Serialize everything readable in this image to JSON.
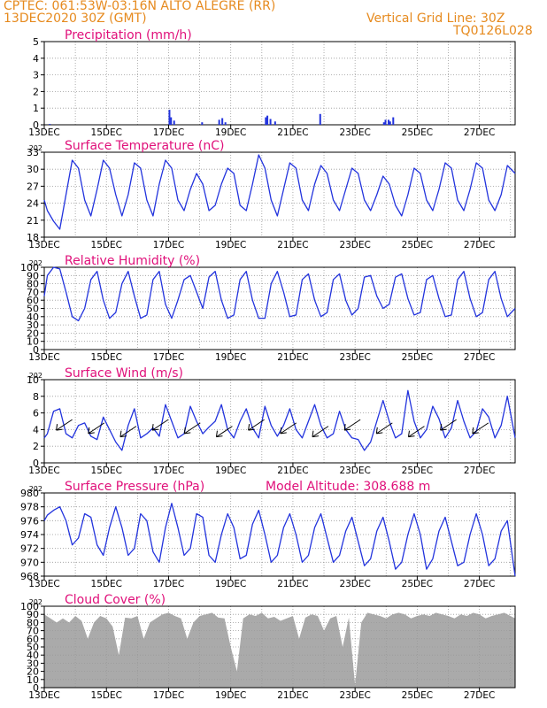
{
  "header": {
    "line1_left": "CPTEC:   061:53W-03:16N   ALTO ALEGRE (RR)",
    "line2_left": "13DEC2020 30Z (GMT)",
    "line1_right": "Vertical Grid Line: 30Z",
    "line2_right": "TQ0126L028"
  },
  "colors": {
    "series": "#2233dd",
    "title": "#e0107a",
    "header": "#e68a1e",
    "cloud": "#aaaaaa",
    "grid": "#999999"
  },
  "x_ticks": [
    "13DEC",
    "15DEC",
    "17DEC",
    "19DEC",
    "21DEC",
    "23DEC",
    "25DEC",
    "27DEC"
  ],
  "stub_label": "202",
  "chart_data": [
    {
      "id": "precip",
      "type": "bar",
      "title": "Precipitation (mm/h)",
      "ylim": [
        0,
        5
      ],
      "yticks": [
        "0",
        "1",
        "2",
        "3",
        "4",
        "5"
      ],
      "x_unit": "days since 13DEC 00Z",
      "x_range": [
        0,
        15.15
      ],
      "bars": [
        [
          0.15,
          0.05
        ],
        [
          4.0,
          0.9
        ],
        [
          4.05,
          0.45
        ],
        [
          4.15,
          0.25
        ],
        [
          5.05,
          0.15
        ],
        [
          5.6,
          0.3
        ],
        [
          5.7,
          0.4
        ],
        [
          5.8,
          0.15
        ],
        [
          7.1,
          0.45
        ],
        [
          7.15,
          0.55
        ],
        [
          7.25,
          0.35
        ],
        [
          7.4,
          0.2
        ],
        [
          8.85,
          0.65
        ],
        [
          10.9,
          0.15
        ],
        [
          10.95,
          0.3
        ],
        [
          11.05,
          0.3
        ],
        [
          11.1,
          0.2
        ],
        [
          11.2,
          0.45
        ]
      ]
    },
    {
      "id": "temp",
      "type": "line",
      "title": "Surface Temperature (nC)",
      "ylim": [
        17,
        33
      ],
      "yticks": [
        "18",
        "21",
        "24",
        "27",
        "30",
        "33"
      ],
      "x_range": [
        0,
        15.15
      ],
      "x": [
        0,
        0.1,
        0.3,
        0.5,
        0.7,
        0.9,
        1.1,
        1.3,
        1.5,
        1.7,
        1.9,
        2.1,
        2.3,
        2.5,
        2.7,
        2.9,
        3.1,
        3.3,
        3.5,
        3.7,
        3.9,
        4.1,
        4.3,
        4.5,
        4.7,
        4.9,
        5.1,
        5.3,
        5.5,
        5.7,
        5.9,
        6.1,
        6.3,
        6.5,
        6.7,
        6.9,
        7.1,
        7.3,
        7.5,
        7.7,
        7.9,
        8.1,
        8.3,
        8.5,
        8.7,
        8.9,
        9.1,
        9.3,
        9.5,
        9.7,
        9.9,
        10.1,
        10.3,
        10.5,
        10.7,
        10.9,
        11.1,
        11.3,
        11.5,
        11.7,
        11.9,
        12.1,
        12.3,
        12.5,
        12.7,
        12.9,
        13.1,
        13.3,
        13.5,
        13.7,
        13.9,
        14.1,
        14.3,
        14.5,
        14.7,
        14.9,
        15.15
      ],
      "y": [
        24,
        22,
        20,
        18.5,
        25,
        31.5,
        30,
        24,
        21,
        26,
        31.5,
        30,
        25,
        21,
        25,
        31,
        30,
        24,
        21,
        27,
        31.5,
        30,
        24,
        22,
        26,
        29,
        27,
        22,
        23,
        27,
        30,
        29,
        23,
        22,
        27,
        32.5,
        30,
        24,
        21,
        26,
        31,
        30,
        24,
        22,
        27,
        30.5,
        29,
        24,
        22,
        26,
        30,
        29,
        24,
        22,
        25,
        28.5,
        27,
        23,
        21,
        25,
        30,
        29,
        24,
        22,
        26,
        31,
        30,
        24,
        22,
        26,
        31,
        30,
        24,
        22,
        25,
        30.5,
        29
      ]
    },
    {
      "id": "rh",
      "type": "line",
      "title": "Relative Humidity (%)",
      "ylim": [
        0,
        100
      ],
      "yticks": [
        "0",
        "10",
        "20",
        "30",
        "40",
        "50",
        "60",
        "70",
        "80",
        "90",
        "100"
      ],
      "x_range": [
        0,
        15.15
      ],
      "x": [
        0,
        0.1,
        0.3,
        0.5,
        0.7,
        0.9,
        1.1,
        1.3,
        1.5,
        1.7,
        1.9,
        2.1,
        2.3,
        2.5,
        2.7,
        2.9,
        3.1,
        3.3,
        3.5,
        3.7,
        3.9,
        4.1,
        4.3,
        4.5,
        4.7,
        4.9,
        5.1,
        5.3,
        5.5,
        5.7,
        5.9,
        6.1,
        6.3,
        6.5,
        6.7,
        6.9,
        7.1,
        7.3,
        7.5,
        7.7,
        7.9,
        8.1,
        8.3,
        8.5,
        8.7,
        8.9,
        9.1,
        9.3,
        9.5,
        9.7,
        9.9,
        10.1,
        10.3,
        10.5,
        10.7,
        10.9,
        11.1,
        11.3,
        11.5,
        11.7,
        11.9,
        12.1,
        12.3,
        12.5,
        12.7,
        12.9,
        13.1,
        13.3,
        13.5,
        13.7,
        13.9,
        14.1,
        14.3,
        14.5,
        14.7,
        14.9,
        15.15
      ],
      "y": [
        65,
        90,
        100,
        98,
        70,
        40,
        35,
        50,
        85,
        95,
        60,
        38,
        45,
        80,
        95,
        65,
        38,
        42,
        85,
        95,
        55,
        38,
        60,
        85,
        90,
        70,
        50,
        88,
        95,
        60,
        38,
        42,
        85,
        95,
        60,
        38,
        38,
        80,
        95,
        70,
        40,
        42,
        85,
        92,
        60,
        40,
        45,
        85,
        92,
        60,
        42,
        50,
        88,
        90,
        65,
        50,
        55,
        88,
        92,
        62,
        42,
        45,
        85,
        90,
        62,
        40,
        42,
        85,
        95,
        62,
        40,
        45,
        85,
        95,
        62,
        40,
        50
      ]
    },
    {
      "id": "wind",
      "type": "line",
      "title": "Surface Wind (m/s)",
      "ylim": [
        0,
        10
      ],
      "yticks": [
        "0",
        "2",
        "4",
        "6",
        "8",
        "10"
      ],
      "x_range": [
        0,
        15.15
      ],
      "x": [
        0,
        0.1,
        0.3,
        0.5,
        0.7,
        0.9,
        1.1,
        1.3,
        1.5,
        1.7,
        1.9,
        2.1,
        2.3,
        2.5,
        2.7,
        2.9,
        3.1,
        3.3,
        3.5,
        3.7,
        3.9,
        4.1,
        4.3,
        4.5,
        4.7,
        4.9,
        5.1,
        5.3,
        5.5,
        5.7,
        5.9,
        6.1,
        6.3,
        6.5,
        6.7,
        6.9,
        7.1,
        7.3,
        7.5,
        7.7,
        7.9,
        8.1,
        8.3,
        8.5,
        8.7,
        8.9,
        9.1,
        9.3,
        9.5,
        9.7,
        9.9,
        10.1,
        10.3,
        10.5,
        10.7,
        10.9,
        11.1,
        11.3,
        11.5,
        11.7,
        11.9,
        12.1,
        12.3,
        12.5,
        12.7,
        12.9,
        13.1,
        13.3,
        13.5,
        13.7,
        13.9,
        14.1,
        14.3,
        14.5,
        14.7,
        14.9,
        15.15
      ],
      "y": [
        3,
        3.5,
        6.2,
        6.5,
        3.5,
        3,
        4.5,
        4.8,
        3.2,
        2.8,
        5.5,
        4,
        2.5,
        1.5,
        4.5,
        6.5,
        3,
        3.5,
        4.2,
        3.2,
        7,
        5,
        3,
        3.5,
        6.8,
        5,
        3.5,
        4.3,
        5,
        7,
        4,
        3,
        5,
        6.5,
        4.2,
        3,
        6.8,
        4.5,
        3.2,
        4.5,
        6.5,
        4,
        3,
        5,
        7,
        4.5,
        3,
        3.5,
        6.2,
        4,
        3,
        2.8,
        1.5,
        2.5,
        5,
        7.5,
        5,
        3,
        3.5,
        8.7,
        5,
        3,
        4,
        6.8,
        5.3,
        3,
        4.2,
        7.5,
        5,
        3,
        3.8,
        6.5,
        5.5,
        3,
        4.5,
        8,
        3
      ]
    },
    {
      "id": "press",
      "type": "line",
      "title": "Surface Pressure (hPa)",
      "annotation": "Model Altitude: 308.688  m",
      "ylim": [
        968,
        980
      ],
      "yticks": [
        "968",
        "970",
        "972",
        "974",
        "976",
        "978",
        "980"
      ],
      "x_range": [
        0,
        15.15
      ],
      "x": [
        0,
        0.1,
        0.3,
        0.5,
        0.7,
        0.9,
        1.1,
        1.3,
        1.5,
        1.7,
        1.9,
        2.1,
        2.3,
        2.5,
        2.7,
        2.9,
        3.1,
        3.3,
        3.5,
        3.7,
        3.9,
        4.1,
        4.3,
        4.5,
        4.7,
        4.9,
        5.1,
        5.3,
        5.5,
        5.7,
        5.9,
        6.1,
        6.3,
        6.5,
        6.7,
        6.9,
        7.1,
        7.3,
        7.5,
        7.7,
        7.9,
        8.1,
        8.3,
        8.5,
        8.7,
        8.9,
        9.1,
        9.3,
        9.5,
        9.7,
        9.9,
        10.1,
        10.3,
        10.5,
        10.7,
        10.9,
        11.1,
        11.3,
        11.5,
        11.7,
        11.9,
        12.1,
        12.3,
        12.5,
        12.7,
        12.9,
        13.1,
        13.3,
        13.5,
        13.7,
        13.9,
        14.1,
        14.3,
        14.5,
        14.7,
        14.9,
        15.15
      ],
      "y": [
        976,
        976.8,
        977.5,
        978,
        976,
        972.5,
        973.5,
        977,
        976.5,
        972.5,
        971,
        975,
        978,
        975,
        971,
        972,
        977,
        976,
        971.5,
        970,
        975,
        978.5,
        975,
        971,
        972,
        977,
        976.5,
        971,
        970,
        974,
        977,
        975,
        970.5,
        971,
        975.5,
        977.5,
        974,
        970,
        971,
        975,
        977,
        974,
        970,
        971,
        975,
        977,
        973.5,
        970,
        971,
        974.5,
        976.5,
        973,
        969.5,
        970.5,
        974.5,
        976.5,
        973,
        969,
        970,
        974,
        977,
        974,
        969,
        970.5,
        974.5,
        976.5,
        973,
        969.5,
        970,
        974,
        977,
        974,
        969.5,
        970.5,
        974.5,
        976,
        968
      ]
    },
    {
      "id": "cloud",
      "type": "area",
      "title": "Cloud Cover (%)",
      "ylim": [
        0,
        100
      ],
      "yticks": [
        "0",
        "10",
        "20",
        "30",
        "40",
        "50",
        "60",
        "70",
        "80",
        "90",
        "100"
      ],
      "x_range": [
        0,
        15.15
      ],
      "x": [
        0,
        0.2,
        0.4,
        0.6,
        0.8,
        1.0,
        1.2,
        1.4,
        1.6,
        1.8,
        2.0,
        2.2,
        2.4,
        2.6,
        2.8,
        3.0,
        3.2,
        3.4,
        3.6,
        3.8,
        4.0,
        4.2,
        4.4,
        4.6,
        4.8,
        5.0,
        5.2,
        5.4,
        5.6,
        5.8,
        6.0,
        6.2,
        6.4,
        6.6,
        6.8,
        7.0,
        7.2,
        7.4,
        7.6,
        7.8,
        8.0,
        8.2,
        8.4,
        8.6,
        8.8,
        9.0,
        9.2,
        9.4,
        9.6,
        9.8,
        10.0,
        10.2,
        10.4,
        10.6,
        10.8,
        11.0,
        11.2,
        11.4,
        11.6,
        11.8,
        12.0,
        12.2,
        12.4,
        12.6,
        12.8,
        13.0,
        13.2,
        13.4,
        13.6,
        13.8,
        14.0,
        14.2,
        14.4,
        14.6,
        14.8,
        15.0,
        15.15
      ],
      "y": [
        90,
        85,
        80,
        85,
        80,
        88,
        82,
        60,
        80,
        88,
        85,
        75,
        40,
        86,
        85,
        88,
        60,
        80,
        85,
        90,
        92,
        88,
        85,
        60,
        80,
        88,
        90,
        92,
        86,
        85,
        50,
        20,
        85,
        90,
        88,
        92,
        85,
        87,
        82,
        85,
        88,
        60,
        86,
        90,
        88,
        70,
        85,
        88,
        50,
        86,
        3,
        80,
        92,
        90,
        88,
        85,
        90,
        92,
        90,
        85,
        88,
        90,
        88,
        92,
        90,
        88,
        85,
        90,
        88,
        92,
        90,
        85,
        88,
        90,
        92,
        88,
        85
      ]
    }
  ]
}
